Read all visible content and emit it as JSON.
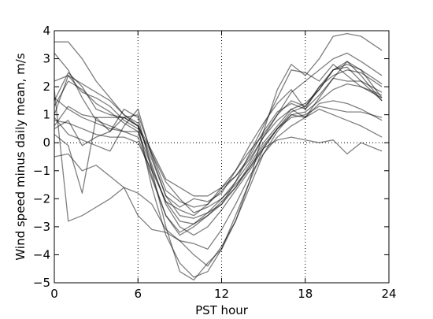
{
  "chart_data": {
    "type": "line",
    "title": "",
    "xlabel": "PST hour",
    "ylabel": "Wind speed minus daily mean, m/s",
    "xlim": [
      0,
      24
    ],
    "ylim": [
      -5,
      4
    ],
    "xticks": [
      0,
      6,
      12,
      18,
      24
    ],
    "yticks": [
      -5,
      -4,
      -3,
      -2,
      -1,
      0,
      1,
      2,
      3,
      4
    ],
    "x_grid_lines": [
      6,
      12,
      18
    ],
    "y_reference_line": 0,
    "grid_style": "dotted",
    "line_color": "#808080",
    "x": [
      0,
      1,
      2,
      3,
      4,
      5,
      6,
      7,
      8,
      9,
      10,
      11,
      12,
      13,
      14,
      15,
      16,
      17,
      18,
      19,
      20,
      21,
      22,
      23.5
    ],
    "series": [
      {
        "values": [
          3.2,
          2.6,
          1.6,
          0.8,
          0.6,
          0.4,
          0.4,
          -1.2,
          -2.6,
          -3.3,
          -3.0,
          -2.6,
          -2.2,
          -1.4,
          -0.4,
          0.6,
          1.6,
          2.6,
          2.5,
          2.2,
          2.8,
          2.4,
          2.0,
          1.6
        ]
      },
      {
        "values": [
          1.5,
          2.5,
          2.0,
          1.2,
          1.0,
          0.9,
          0.6,
          -0.6,
          -1.9,
          -2.3,
          -2.0,
          -2.1,
          -1.8,
          -1.0,
          -0.1,
          0.7,
          1.4,
          1.9,
          1.2,
          1.7,
          2.3,
          2.2,
          2.2,
          1.8
        ]
      },
      {
        "values": [
          1.0,
          2.4,
          1.8,
          1.6,
          1.3,
          0.8,
          0.5,
          -0.4,
          -1.7,
          -2.1,
          -2.3,
          -2.2,
          -1.6,
          -1.0,
          -0.3,
          0.3,
          1.0,
          1.5,
          1.3,
          1.9,
          2.6,
          2.8,
          2.6,
          2.1
        ]
      },
      {
        "values": [
          0.6,
          1.3,
          1.0,
          0.9,
          0.9,
          0.9,
          0.6,
          -0.3,
          -1.3,
          -1.6,
          -1.9,
          -1.9,
          -1.6,
          -1.2,
          -0.6,
          0.2,
          0.8,
          1.2,
          0.9,
          1.6,
          2.3,
          2.9,
          2.6,
          1.6
        ]
      },
      {
        "values": [
          1.3,
          2.2,
          1.9,
          1.4,
          1.1,
          0.7,
          0.4,
          -0.9,
          -2.1,
          -2.4,
          -2.6,
          -2.2,
          -1.7,
          -1.2,
          -0.5,
          0.4,
          1.1,
          1.4,
          1.2,
          2.0,
          2.6,
          2.9,
          2.4,
          1.5
        ]
      },
      {
        "values": [
          0.8,
          0.7,
          0.5,
          0.3,
          0.2,
          0.2,
          0.0,
          -1.0,
          -2.1,
          -2.8,
          -2.9,
          -2.6,
          -2.1,
          -1.6,
          -0.9,
          -0.1,
          0.5,
          0.9,
          1.0,
          1.3,
          1.2,
          1.1,
          1.1,
          0.9
        ]
      },
      {
        "values": [
          1.6,
          1.2,
          0.9,
          0.7,
          0.5,
          0.4,
          0.2,
          -1.3,
          -2.6,
          -3.2,
          -2.9,
          -2.5,
          -2.0,
          -1.4,
          -0.7,
          0.2,
          1.0,
          1.8,
          2.2,
          2.6,
          3.0,
          3.2,
          2.9,
          2.4
        ]
      },
      {
        "values": [
          3.6,
          3.6,
          3.0,
          2.2,
          1.6,
          1.0,
          0.6,
          -1.6,
          -3.3,
          -4.3,
          -4.8,
          -4.6,
          -3.8,
          -2.8,
          -1.4,
          0.4,
          1.9,
          2.8,
          2.4,
          3.0,
          3.8,
          3.9,
          3.8,
          3.3
        ]
      },
      {
        "values": [
          -0.5,
          -0.4,
          -1.0,
          -0.8,
          -1.2,
          -1.6,
          -2.6,
          -3.1,
          -3.2,
          -3.5,
          -4.0,
          -4.4,
          -3.7,
          -2.8,
          -1.6,
          -0.4,
          0.4,
          1.0,
          0.9,
          1.4,
          1.5,
          1.4,
          1.2,
          0.8
        ]
      },
      {
        "values": [
          0.5,
          0.8,
          -0.1,
          0.2,
          0.4,
          0.9,
          1.0,
          -0.4,
          -1.4,
          -2.0,
          -2.5,
          -2.3,
          -2.0,
          -1.5,
          -0.9,
          -0.2,
          0.1,
          0.2,
          0.1,
          0.0,
          0.1,
          -0.4,
          0.0,
          -0.3
        ]
      },
      {
        "values": [
          1.9,
          -2.8,
          -2.6,
          -2.3,
          -2.0,
          -1.6,
          -1.8,
          -2.2,
          -3.1,
          -3.5,
          -3.6,
          -3.8,
          -3.1,
          -2.2,
          -1.2,
          -0.4,
          0.2,
          0.6,
          0.9,
          1.2,
          1.0,
          0.8,
          0.6,
          0.2
        ]
      },
      {
        "values": [
          0.3,
          -0.1,
          -1.8,
          0.9,
          0.4,
          1.2,
          0.9,
          -1.0,
          -3.0,
          -4.6,
          -4.9,
          -4.3,
          -3.8,
          -2.6,
          -1.4,
          -0.2,
          0.5,
          1.1,
          1.3,
          2.0,
          2.4,
          2.6,
          2.5,
          2.0
        ]
      },
      {
        "values": [
          0.9,
          0.3,
          0.1,
          -0.1,
          -0.3,
          0.6,
          1.2,
          -0.5,
          -1.9,
          -2.6,
          -2.7,
          -2.5,
          -2.2,
          -1.6,
          -0.8,
          0.0,
          0.6,
          1.2,
          1.4,
          1.9,
          2.6,
          2.7,
          2.2,
          1.5
        ]
      },
      {
        "values": [
          2.2,
          2.4,
          2.1,
          1.8,
          1.5,
          1.0,
          0.7,
          -0.8,
          -2.2,
          -3.0,
          -3.3,
          -3.0,
          -2.4,
          -1.7,
          -1.0,
          -0.2,
          0.5,
          1.0,
          1.1,
          1.5,
          1.9,
          2.1,
          2.0,
          1.7
        ]
      }
    ]
  }
}
